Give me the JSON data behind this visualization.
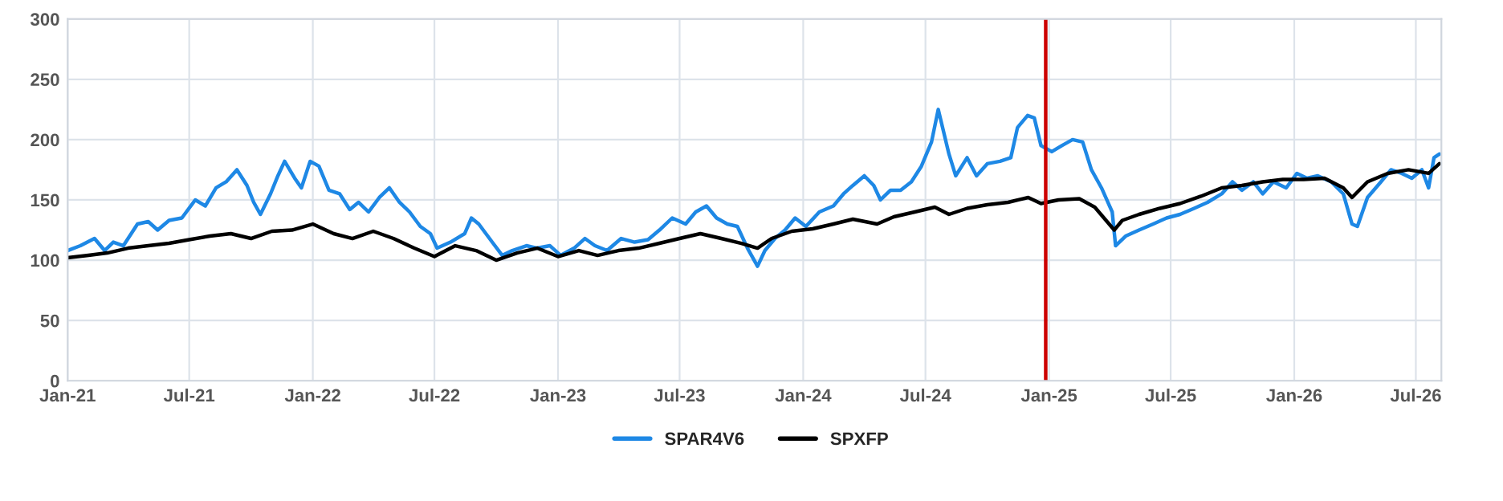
{
  "chart_data": {
    "type": "line",
    "xlim": [
      "2021-01-01",
      "2026-08-08"
    ],
    "xticks": [
      {
        "value": "2021-01-01",
        "label": "Jan-21"
      },
      {
        "value": "2021-07-01",
        "label": "Jul-21"
      },
      {
        "value": "2022-01-01",
        "label": "Jan-22"
      },
      {
        "value": "2022-07-01",
        "label": "Jul-22"
      },
      {
        "value": "2023-01-01",
        "label": "Jan-23"
      },
      {
        "value": "2023-07-01",
        "label": "Jul-23"
      },
      {
        "value": "2024-01-01",
        "label": "Jan-24"
      },
      {
        "value": "2024-07-01",
        "label": "Jul-24"
      },
      {
        "value": "2025-01-01",
        "label": "Jan-25"
      },
      {
        "value": "2025-07-01",
        "label": "Jul-25"
      },
      {
        "value": "2026-01-01",
        "label": "Jan-26"
      },
      {
        "value": "2026-07-01",
        "label": "Jul-26"
      }
    ],
    "ylim": [
      0,
      300
    ],
    "yticks": [
      0,
      50,
      100,
      150,
      200,
      250,
      300
    ],
    "grid": true,
    "legend": "bottom",
    "line_style": "solid",
    "marker": "none",
    "ref_lines": [
      {
        "axis": "x",
        "value": "2024-12-27",
        "color": "#cc0000"
      }
    ],
    "series": [
      {
        "name": "SPAR4V6",
        "color": "#1e88e5",
        "x": [
          "2021-01-01",
          "2021-01-20",
          "2021-02-10",
          "2021-02-25",
          "2021-03-10",
          "2021-03-25",
          "2021-04-15",
          "2021-05-01",
          "2021-05-15",
          "2021-06-01",
          "2021-06-20",
          "2021-07-10",
          "2021-07-25",
          "2021-08-10",
          "2021-08-25",
          "2021-09-10",
          "2021-09-25",
          "2021-10-05",
          "2021-10-15",
          "2021-10-30",
          "2021-11-10",
          "2021-11-20",
          "2021-12-05",
          "2021-12-15",
          "2021-12-28",
          "2022-01-10",
          "2022-01-25",
          "2022-02-10",
          "2022-02-25",
          "2022-03-10",
          "2022-03-25",
          "2022-04-10",
          "2022-04-25",
          "2022-05-10",
          "2022-05-25",
          "2022-06-10",
          "2022-06-25",
          "2022-07-05",
          "2022-07-25",
          "2022-08-15",
          "2022-08-25",
          "2022-09-05",
          "2022-09-25",
          "2022-10-10",
          "2022-10-25",
          "2022-11-15",
          "2022-12-01",
          "2022-12-20",
          "2023-01-05",
          "2023-01-25",
          "2023-02-10",
          "2023-02-25",
          "2023-03-15",
          "2023-04-05",
          "2023-04-25",
          "2023-05-15",
          "2023-06-01",
          "2023-06-20",
          "2023-07-10",
          "2023-07-25",
          "2023-08-10",
          "2023-08-25",
          "2023-09-10",
          "2023-09-25",
          "2023-10-10",
          "2023-10-25",
          "2023-11-05",
          "2023-11-20",
          "2023-12-05",
          "2023-12-20",
          "2024-01-05",
          "2024-01-25",
          "2024-02-15",
          "2024-03-01",
          "2024-03-15",
          "2024-04-01",
          "2024-04-15",
          "2024-04-25",
          "2024-05-10",
          "2024-05-25",
          "2024-06-10",
          "2024-06-25",
          "2024-07-10",
          "2024-07-20",
          "2024-08-05",
          "2024-08-15",
          "2024-09-01",
          "2024-09-15",
          "2024-10-01",
          "2024-10-20",
          "2024-11-05",
          "2024-11-15",
          "2024-11-30",
          "2024-12-10",
          "2024-12-20",
          "2025-01-05",
          "2025-01-20",
          "2025-02-05",
          "2025-02-20",
          "2025-03-05",
          "2025-03-20",
          "2025-04-05",
          "2025-04-10",
          "2025-04-25",
          "2025-05-15",
          "2025-06-05",
          "2025-06-25",
          "2025-07-15",
          "2025-08-05",
          "2025-08-25",
          "2025-09-15",
          "2025-10-01",
          "2025-10-15",
          "2025-11-01",
          "2025-11-15",
          "2025-12-01",
          "2025-12-20",
          "2026-01-05",
          "2026-01-20",
          "2026-02-05",
          "2026-02-25",
          "2026-03-15",
          "2026-03-28",
          "2026-04-05",
          "2026-04-20",
          "2026-05-10",
          "2026-05-25",
          "2026-06-10",
          "2026-06-25",
          "2026-07-10",
          "2026-07-20",
          "2026-07-28",
          "2026-08-05"
        ],
        "values": [
          108,
          112,
          118,
          108,
          115,
          112,
          130,
          132,
          125,
          133,
          135,
          150,
          145,
          160,
          165,
          175,
          162,
          148,
          138,
          155,
          170,
          182,
          168,
          160,
          182,
          178,
          158,
          155,
          142,
          148,
          140,
          152,
          160,
          148,
          140,
          128,
          122,
          110,
          115,
          122,
          135,
          130,
          115,
          104,
          108,
          112,
          110,
          112,
          104,
          110,
          118,
          112,
          108,
          118,
          115,
          117,
          125,
          135,
          130,
          140,
          145,
          135,
          130,
          128,
          110,
          95,
          108,
          118,
          125,
          135,
          128,
          140,
          145,
          155,
          162,
          170,
          162,
          150,
          158,
          158,
          165,
          178,
          198,
          225,
          188,
          170,
          185,
          170,
          180,
          182,
          185,
          210,
          220,
          218,
          195,
          190,
          195,
          200,
          198,
          175,
          160,
          140,
          112,
          120,
          125,
          130,
          135,
          138,
          143,
          148,
          155,
          165,
          158,
          165,
          155,
          165,
          160,
          172,
          168,
          170,
          165,
          155,
          130,
          128,
          152,
          165,
          175,
          172,
          168,
          175,
          160,
          185,
          188
        ]
      },
      {
        "name": "SPXFP",
        "color": "#000000",
        "x": [
          "2021-01-01",
          "2021-02-01",
          "2021-03-01",
          "2021-04-01",
          "2021-05-01",
          "2021-06-01",
          "2021-07-01",
          "2021-08-01",
          "2021-09-01",
          "2021-10-01",
          "2021-11-01",
          "2021-12-01",
          "2022-01-01",
          "2022-02-01",
          "2022-03-01",
          "2022-04-01",
          "2022-05-01",
          "2022-06-01",
          "2022-07-01",
          "2022-08-01",
          "2022-09-01",
          "2022-10-01",
          "2022-11-01",
          "2022-12-01",
          "2023-01-01",
          "2023-02-01",
          "2023-03-01",
          "2023-04-01",
          "2023-05-01",
          "2023-06-01",
          "2023-07-01",
          "2023-08-01",
          "2023-09-01",
          "2023-10-01",
          "2023-10-25",
          "2023-11-15",
          "2023-12-15",
          "2024-01-15",
          "2024-02-15",
          "2024-03-15",
          "2024-04-20",
          "2024-05-15",
          "2024-06-15",
          "2024-07-15",
          "2024-08-05",
          "2024-09-01",
          "2024-10-01",
          "2024-11-01",
          "2024-12-01",
          "2024-12-20",
          "2025-01-15",
          "2025-02-15",
          "2025-03-10",
          "2025-04-08",
          "2025-04-20",
          "2025-05-15",
          "2025-06-15",
          "2025-07-15",
          "2025-08-15",
          "2025-09-15",
          "2025-10-15",
          "2025-11-15",
          "2025-12-15",
          "2026-01-15",
          "2026-02-15",
          "2026-03-15",
          "2026-03-28",
          "2026-04-20",
          "2026-05-20",
          "2026-06-20",
          "2026-07-20",
          "2026-08-05"
        ],
        "values": [
          102,
          104,
          106,
          110,
          112,
          114,
          117,
          120,
          122,
          118,
          124,
          125,
          130,
          122,
          118,
          124,
          118,
          110,
          103,
          112,
          108,
          100,
          106,
          110,
          103,
          108,
          104,
          108,
          110,
          114,
          118,
          122,
          118,
          114,
          110,
          118,
          124,
          126,
          130,
          134,
          130,
          136,
          140,
          144,
          138,
          143,
          146,
          148,
          152,
          147,
          150,
          151,
          144,
          125,
          133,
          138,
          143,
          147,
          153,
          160,
          162,
          165,
          167,
          167,
          168,
          160,
          152,
          165,
          172,
          175,
          172,
          180
        ]
      }
    ]
  }
}
